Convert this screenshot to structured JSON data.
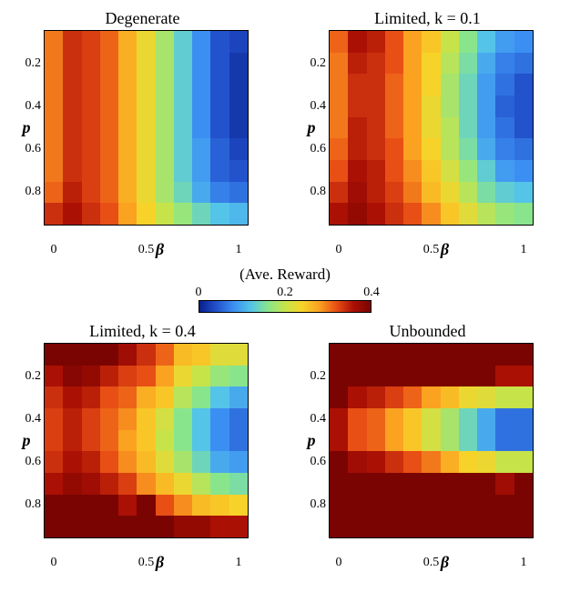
{
  "layout": {
    "panel_cols": 11,
    "panel_rows": 9,
    "figure_bg": "#ffffff",
    "yticks": [
      {
        "v": "0.2",
        "pos": 0.167
      },
      {
        "v": "0.4",
        "pos": 0.389
      },
      {
        "v": "0.6",
        "pos": 0.611
      },
      {
        "v": "0.8",
        "pos": 0.833
      }
    ],
    "xticks": [
      {
        "v": "0",
        "pos": 0.045
      },
      {
        "v": "0.5",
        "pos": 0.5
      },
      {
        "v": "1",
        "pos": 0.955
      }
    ],
    "ylabel": "p",
    "xlabel": "β"
  },
  "colorbar": {
    "title": "(Ave. Reward)",
    "vmin": 0.0,
    "vmax": 0.4,
    "ticks": [
      {
        "v": "0",
        "pos": 0.0
      },
      {
        "v": "0.2",
        "pos": 0.5
      },
      {
        "v": "0.4",
        "pos": 1.0
      }
    ],
    "gradient": [
      "#071e8d",
      "#2352cd",
      "#3c8ff2",
      "#54c4e8",
      "#88e58c",
      "#c7e34a",
      "#f7d329",
      "#fba221",
      "#e84f15",
      "#ab1004",
      "#7a0402"
    ]
  },
  "panels": [
    {
      "title": "Degenerate",
      "data": [
        [
          0.3,
          0.34,
          0.33,
          0.31,
          0.27,
          0.23,
          0.18,
          0.13,
          0.08,
          0.04,
          0.03
        ],
        [
          0.3,
          0.34,
          0.33,
          0.31,
          0.27,
          0.23,
          0.18,
          0.13,
          0.08,
          0.04,
          0.02
        ],
        [
          0.3,
          0.34,
          0.33,
          0.31,
          0.27,
          0.23,
          0.18,
          0.13,
          0.08,
          0.04,
          0.02
        ],
        [
          0.3,
          0.34,
          0.33,
          0.31,
          0.27,
          0.23,
          0.18,
          0.13,
          0.08,
          0.04,
          0.02
        ],
        [
          0.3,
          0.34,
          0.33,
          0.31,
          0.27,
          0.23,
          0.18,
          0.13,
          0.08,
          0.04,
          0.02
        ],
        [
          0.3,
          0.34,
          0.33,
          0.31,
          0.27,
          0.23,
          0.18,
          0.13,
          0.09,
          0.05,
          0.03
        ],
        [
          0.3,
          0.34,
          0.33,
          0.31,
          0.27,
          0.23,
          0.18,
          0.13,
          0.09,
          0.05,
          0.04
        ],
        [
          0.31,
          0.35,
          0.33,
          0.31,
          0.27,
          0.23,
          0.18,
          0.14,
          0.1,
          0.07,
          0.06
        ],
        [
          0.34,
          0.36,
          0.34,
          0.32,
          0.28,
          0.24,
          0.2,
          0.17,
          0.14,
          0.12,
          0.11
        ]
      ]
    },
    {
      "title": "Limited, k = 0.1",
      "data": [
        [
          0.31,
          0.36,
          0.35,
          0.32,
          0.28,
          0.25,
          0.2,
          0.16,
          0.12,
          0.09,
          0.08
        ],
        [
          0.3,
          0.35,
          0.34,
          0.32,
          0.28,
          0.24,
          0.19,
          0.15,
          0.1,
          0.07,
          0.06
        ],
        [
          0.3,
          0.34,
          0.34,
          0.31,
          0.28,
          0.24,
          0.18,
          0.14,
          0.09,
          0.06,
          0.04
        ],
        [
          0.3,
          0.34,
          0.34,
          0.31,
          0.28,
          0.23,
          0.18,
          0.14,
          0.09,
          0.05,
          0.04
        ],
        [
          0.3,
          0.35,
          0.34,
          0.31,
          0.28,
          0.23,
          0.19,
          0.14,
          0.09,
          0.06,
          0.04
        ],
        [
          0.31,
          0.35,
          0.34,
          0.32,
          0.28,
          0.24,
          0.19,
          0.15,
          0.1,
          0.07,
          0.06
        ],
        [
          0.32,
          0.36,
          0.35,
          0.32,
          0.29,
          0.25,
          0.21,
          0.17,
          0.13,
          0.09,
          0.08
        ],
        [
          0.34,
          0.37,
          0.35,
          0.33,
          0.3,
          0.26,
          0.23,
          0.19,
          0.15,
          0.13,
          0.12
        ],
        [
          0.36,
          0.38,
          0.36,
          0.34,
          0.32,
          0.29,
          0.25,
          0.22,
          0.19,
          0.17,
          0.16
        ]
      ]
    },
    {
      "title": "Limited, k = 0.4",
      "data": [
        [
          0.4,
          0.4,
          0.4,
          0.4,
          0.37,
          0.34,
          0.31,
          0.26,
          0.25,
          0.22,
          0.22
        ],
        [
          0.36,
          0.39,
          0.38,
          0.35,
          0.33,
          0.32,
          0.28,
          0.23,
          0.2,
          0.17,
          0.16
        ],
        [
          0.34,
          0.36,
          0.35,
          0.32,
          0.31,
          0.27,
          0.25,
          0.19,
          0.16,
          0.12,
          0.1
        ],
        [
          0.33,
          0.35,
          0.33,
          0.31,
          0.29,
          0.25,
          0.21,
          0.16,
          0.12,
          0.08,
          0.06
        ],
        [
          0.33,
          0.35,
          0.33,
          0.31,
          0.28,
          0.25,
          0.2,
          0.16,
          0.12,
          0.08,
          0.06
        ],
        [
          0.34,
          0.36,
          0.35,
          0.32,
          0.29,
          0.26,
          0.22,
          0.18,
          0.14,
          0.1,
          0.09
        ],
        [
          0.36,
          0.38,
          0.37,
          0.35,
          0.33,
          0.29,
          0.26,
          0.23,
          0.19,
          0.16,
          0.15
        ],
        [
          0.4,
          0.4,
          0.4,
          0.4,
          0.36,
          0.4,
          0.32,
          0.29,
          0.26,
          0.25,
          0.24
        ],
        [
          0.4,
          0.4,
          0.4,
          0.4,
          0.4,
          0.4,
          0.4,
          0.38,
          0.38,
          0.36,
          0.36
        ]
      ]
    },
    {
      "title": "Unbounded",
      "data": [
        [
          0.4,
          0.4,
          0.4,
          0.4,
          0.4,
          0.4,
          0.4,
          0.4,
          0.4,
          0.4,
          0.4
        ],
        [
          0.4,
          0.4,
          0.4,
          0.4,
          0.4,
          0.4,
          0.4,
          0.4,
          0.4,
          0.36,
          0.36
        ],
        [
          0.4,
          0.36,
          0.35,
          0.33,
          0.31,
          0.28,
          0.26,
          0.23,
          0.22,
          0.2,
          0.2
        ],
        [
          0.36,
          0.32,
          0.31,
          0.28,
          0.25,
          0.21,
          0.18,
          0.14,
          0.1,
          0.06,
          0.06
        ],
        [
          0.36,
          0.32,
          0.31,
          0.28,
          0.25,
          0.21,
          0.18,
          0.14,
          0.1,
          0.06,
          0.06
        ],
        [
          0.4,
          0.37,
          0.36,
          0.34,
          0.32,
          0.3,
          0.27,
          0.24,
          0.23,
          0.2,
          0.2
        ],
        [
          0.4,
          0.4,
          0.4,
          0.4,
          0.4,
          0.4,
          0.4,
          0.4,
          0.4,
          0.37,
          0.4
        ],
        [
          0.4,
          0.4,
          0.4,
          0.4,
          0.4,
          0.4,
          0.4,
          0.4,
          0.4,
          0.4,
          0.4
        ],
        [
          0.4,
          0.4,
          0.4,
          0.4,
          0.4,
          0.4,
          0.4,
          0.4,
          0.4,
          0.4,
          0.4
        ]
      ]
    }
  ]
}
